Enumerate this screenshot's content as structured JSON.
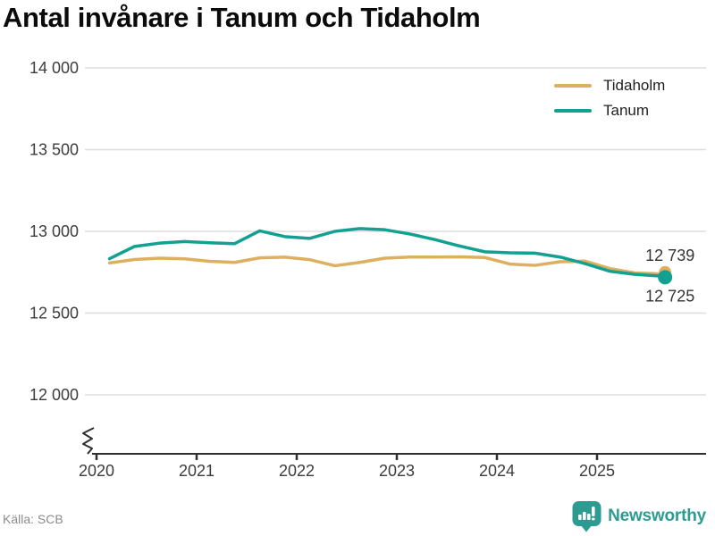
{
  "chart": {
    "title": "Antal invånare i Tanum och Tidaholm"
  },
  "chart_data": {
    "type": "line",
    "title": "Antal invånare i Tanum och Tidaholm",
    "xlabel": "",
    "ylabel": "",
    "grid": "horizontal",
    "legend_position": "top-right",
    "axis_break": true,
    "ylim": [
      12000,
      14000
    ],
    "xlim": [
      2020,
      2025.7
    ],
    "yticks": [
      {
        "value": 14000,
        "label": "14 000"
      },
      {
        "value": 13500,
        "label": "13 500"
      },
      {
        "value": 13000,
        "label": "13 000"
      },
      {
        "value": 12500,
        "label": "12 500"
      },
      {
        "value": 12000,
        "label": "12 000"
      }
    ],
    "xticks": [
      {
        "value": 2020,
        "label": "2020"
      },
      {
        "value": 2021,
        "label": "2021"
      },
      {
        "value": 2022,
        "label": "2022"
      },
      {
        "value": 2023,
        "label": "2023"
      },
      {
        "value": 2024,
        "label": "2024"
      },
      {
        "value": 2025,
        "label": "2025"
      }
    ],
    "x": [
      2020.13,
      2020.38,
      2020.63,
      2020.88,
      2021.13,
      2021.38,
      2021.63,
      2021.88,
      2022.13,
      2022.38,
      2022.63,
      2022.88,
      2023.13,
      2023.38,
      2023.63,
      2023.88,
      2024.13,
      2024.38,
      2024.63,
      2024.88,
      2025.13,
      2025.38,
      2025.68
    ],
    "series": [
      {
        "name": "Tidaholm",
        "color": "#DDB05F",
        "end_value": 12739,
        "end_label": "12 739",
        "end_label_position": "above",
        "values": [
          12807,
          12828,
          12836,
          12832,
          12817,
          12810,
          12838,
          12842,
          12827,
          12790,
          12810,
          12836,
          12843,
          12843,
          12844,
          12840,
          12800,
          12792,
          12814,
          12818,
          12772,
          12746,
          12739
        ]
      },
      {
        "name": "Tanum",
        "color": "#12A191",
        "end_value": 12725,
        "end_label": "12 725",
        "end_label_position": "below",
        "values": [
          12833,
          12908,
          12928,
          12938,
          12930,
          12925,
          13003,
          12968,
          12957,
          13000,
          13017,
          13010,
          12984,
          12950,
          12910,
          12875,
          12869,
          12867,
          12843,
          12803,
          12756,
          12737,
          12725
        ]
      }
    ]
  },
  "footer": {
    "source": "Källa: SCB",
    "brand": "Newsworthy"
  },
  "colors": {
    "grid": "#dddddd",
    "axis": "#2f2f2f",
    "tick_text": "#3c3c3c",
    "data_label": "#333333",
    "brand_teal": "#2d9b91"
  }
}
